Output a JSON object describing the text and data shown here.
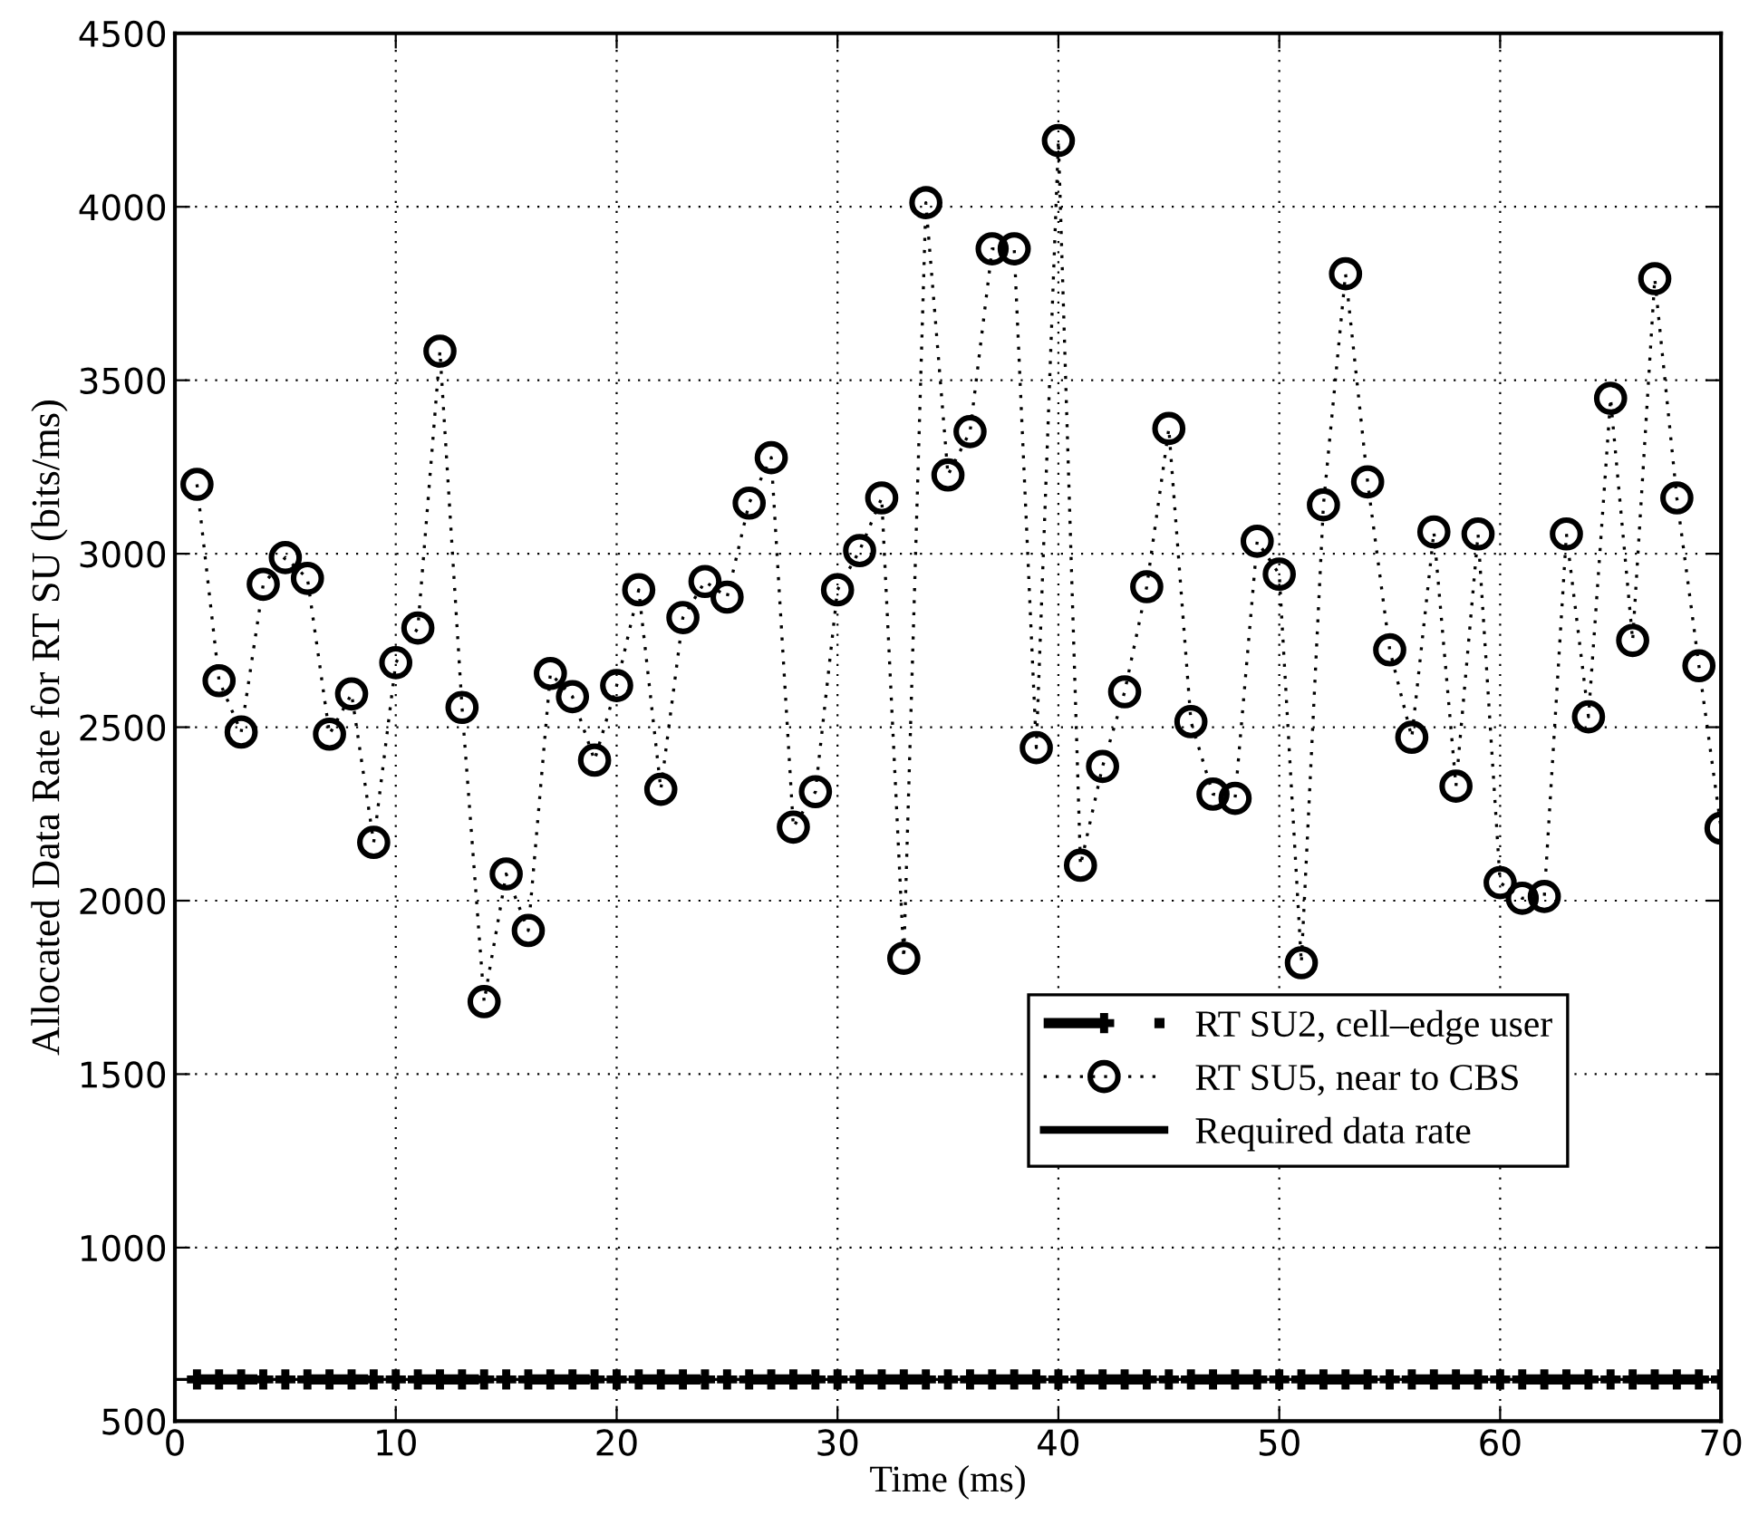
{
  "chart_data": {
    "type": "line",
    "xlabel": "Time (ms)",
    "ylabel": "Allocated Data Rate for RT SU (bits/ms)",
    "x": [
      1,
      2,
      3,
      4,
      5,
      6,
      7,
      8,
      9,
      10,
      11,
      12,
      13,
      14,
      15,
      16,
      17,
      18,
      19,
      20,
      21,
      22,
      23,
      24,
      25,
      26,
      27,
      28,
      29,
      30,
      31,
      32,
      33,
      34,
      35,
      36,
      37,
      38,
      39,
      40,
      41,
      42,
      43,
      44,
      45,
      46,
      47,
      48,
      49,
      50,
      51,
      52,
      53,
      54,
      55,
      56,
      57,
      58,
      59,
      60,
      61,
      62,
      63,
      64,
      65,
      66,
      67,
      68,
      69,
      70
    ],
    "series": [
      {
        "name": "RT SU2, cell–edge user",
        "color": "#000000",
        "marker": "cross",
        "line_style": "dashed",
        "values": [
          620,
          620,
          620,
          620,
          620,
          620,
          620,
          620,
          620,
          620,
          620,
          620,
          620,
          620,
          620,
          620,
          620,
          620,
          620,
          620,
          620,
          620,
          620,
          620,
          620,
          620,
          620,
          620,
          620,
          620,
          620,
          620,
          620,
          620,
          620,
          620,
          620,
          620,
          620,
          620,
          620,
          620,
          620,
          620,
          620,
          620,
          620,
          620,
          620,
          620,
          620,
          620,
          620,
          620,
          620,
          620,
          620,
          620,
          620,
          620,
          620,
          620,
          620,
          620,
          620,
          620,
          620,
          620,
          620,
          620
        ]
      },
      {
        "name": "RT SU5, near to CBS",
        "color": "#000000",
        "marker": "circle",
        "line_style": "dotted",
        "values": [
          3200,
          2634,
          2486,
          2912,
          2989,
          2929,
          2480,
          2596,
          2168,
          2686,
          2786,
          3584,
          2557,
          1709,
          2077,
          1914,
          2655,
          2588,
          2405,
          2620,
          2896,
          2321,
          2816,
          2920,
          2875,
          3146,
          3277,
          2212,
          2314,
          2896,
          3009,
          3161,
          1834,
          4012,
          3227,
          3352,
          3879,
          3879,
          2441,
          4191,
          2102,
          2387,
          2602,
          2905,
          3361,
          2516,
          2307,
          2295,
          3036,
          2941,
          1821,
          3141,
          3807,
          3207,
          2723,
          2471,
          3063,
          2330,
          3057,
          2052,
          2007,
          2012,
          3057,
          2530,
          3448,
          2750,
          3793,
          3161,
          2677,
          2209
        ]
      }
    ],
    "ref_lines": [
      {
        "axis": "y",
        "value": 620,
        "label": "Required data rate",
        "color": "#000000",
        "line_style": "solid"
      }
    ],
    "xlim": [
      0,
      70
    ],
    "xticks": [
      0,
      10,
      20,
      30,
      40,
      50,
      60,
      70
    ],
    "ylim": [
      500,
      4500
    ],
    "yticks": [
      500,
      1000,
      1500,
      2000,
      2500,
      3000,
      3500,
      4000,
      4500
    ],
    "grid": true,
    "legend": "bottom right"
  }
}
